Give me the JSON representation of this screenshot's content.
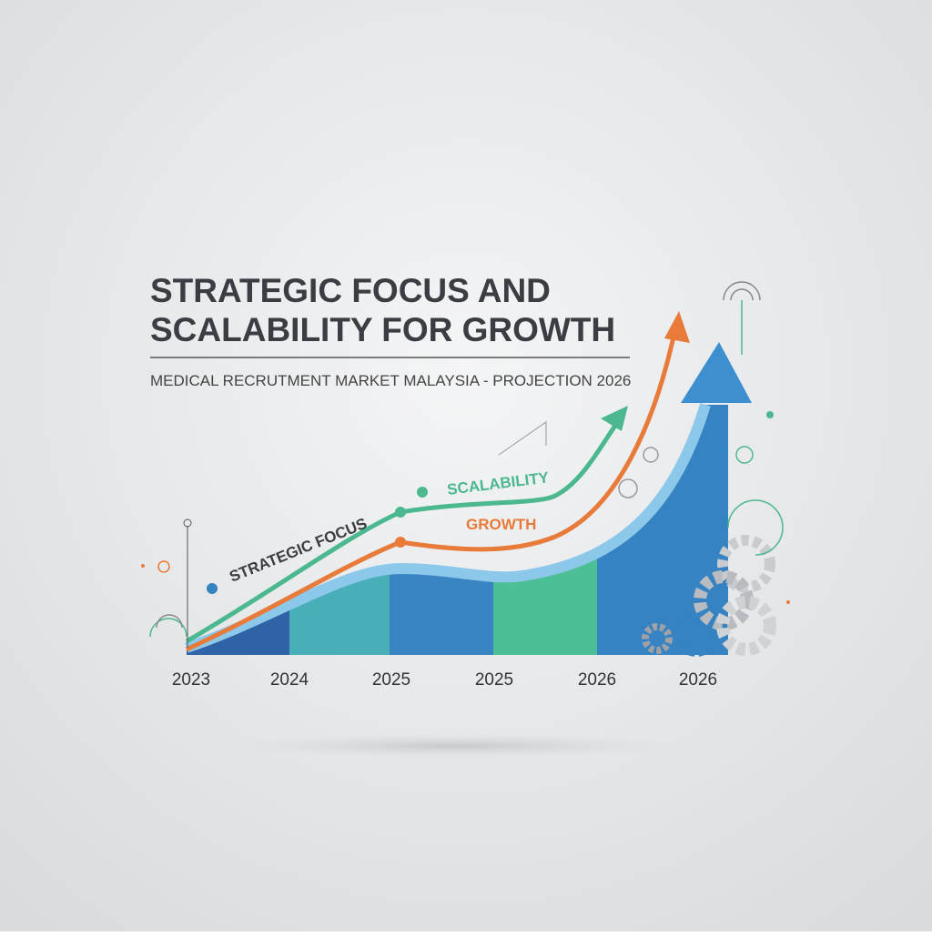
{
  "header": {
    "title_lines": [
      "STRATEGIC FOCUS AND",
      "SCALABILITY FOR GROWTH"
    ],
    "subtitle": "MEDICAL RECRUTMENT MARKET MALAYSIA - PROJECTION 2026"
  },
  "labels": {
    "strategic_focus": "STRATEGIC FOCUS",
    "scalability": "SCALABILITY",
    "growth": "GROWTH"
  },
  "axis_labels": [
    "2023",
    "2024",
    "2025",
    "2025",
    "2026",
    "2026"
  ]
}
